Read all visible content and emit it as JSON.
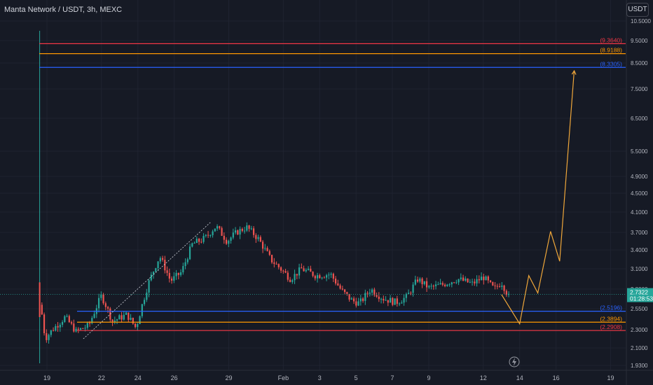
{
  "header": {
    "symbol_title": "Manta Network / USDT, 3h, MEXC",
    "currency": "USDT"
  },
  "colors": {
    "background": "#161a25",
    "up": "#26a69a",
    "down": "#ef5350",
    "red_line": "#f23645",
    "orange_line": "#ff9800",
    "blue_line": "#2962ff",
    "projection": "#f0a73a",
    "axis_text": "#b2b5be",
    "grid": "#1f2330"
  },
  "chart_data": {
    "type": "candlestick",
    "price_axis_ticks": [
      "10.5000",
      "9.5000",
      "8.5000",
      "7.5000",
      "6.5000",
      "5.5000",
      "4.9000",
      "4.5000",
      "4.1000",
      "3.7000",
      "3.4000",
      "3.1000",
      "2.8000",
      "2.5500",
      "2.3000",
      "2.1000",
      "1.9300"
    ],
    "time_axis_ticks": [
      "19",
      "22",
      "24",
      "26",
      "29",
      "Feb",
      "3",
      "5",
      "7",
      "9",
      "12",
      "14",
      "16",
      "19"
    ],
    "horizontal_levels": [
      {
        "value": 9.364,
        "label": "(9.3640)",
        "color": "#f23645"
      },
      {
        "value": 8.9188,
        "label": "(8.9188)",
        "color": "#ff9800"
      },
      {
        "value": 8.3305,
        "label": "(8.3305)",
        "color": "#2962ff"
      },
      {
        "value": 2.5196,
        "label": "(2.5196)",
        "color": "#2962ff"
      },
      {
        "value": 2.3894,
        "label": "(2.3894)",
        "color": "#ff9800"
      },
      {
        "value": 2.2908,
        "label": "(2.2908)",
        "color": "#f23645"
      }
    ],
    "current_price": {
      "value": "2.7322",
      "countdown": "01:28:53"
    },
    "projection_path": [
      {
        "x": "Feb 13",
        "y": 2.73
      },
      {
        "x": "Feb 14",
        "y": 2.37
      },
      {
        "x": "Feb 14.5",
        "y": 3.0
      },
      {
        "x": "Feb 15",
        "y": 2.75
      },
      {
        "x": "Feb 15.7",
        "y": 3.72
      },
      {
        "x": "Feb 16.2",
        "y": 3.22
      },
      {
        "x": "Feb 17",
        "y": 8.2
      }
    ],
    "trend_segment": [
      {
        "x": "Jan 21",
        "y": 2.2
      },
      {
        "x": "Jan 28",
        "y": 3.9
      }
    ],
    "price_path": [
      [
        "Jan 18.6",
        10.0
      ],
      [
        "Jan 18.65",
        2.6
      ],
      [
        "Jan 18.9",
        2.2
      ],
      [
        "Jan 19.3",
        2.3
      ],
      [
        "Jan 20",
        2.45
      ],
      [
        "Jan 20.6",
        2.28
      ],
      [
        "Jan 21.3",
        2.35
      ],
      [
        "Jan 22",
        2.72
      ],
      [
        "Jan 22.6",
        2.4
      ],
      [
        "Jan 23.4",
        2.48
      ],
      [
        "Jan 23.9",
        2.32
      ],
      [
        "Jan 24.6",
        2.9
      ],
      [
        "Jan 25.2",
        3.3
      ],
      [
        "Jan 25.8",
        2.92
      ],
      [
        "Jan 26.4",
        3.05
      ],
      [
        "Jan 27.0",
        3.5
      ],
      [
        "Jan 27.7",
        3.6
      ],
      [
        "Jan 28.3",
        3.82
      ],
      [
        "Jan 28.9",
        3.55
      ],
      [
        "Jan 29.5",
        3.72
      ],
      [
        "Jan 30.0",
        3.8
      ],
      [
        "Jan 30.6",
        3.6
      ],
      [
        "Jan 31.3",
        3.25
      ],
      [
        "Feb 1.4",
        2.95
      ],
      [
        "Feb 2.0",
        3.1
      ],
      [
        "Feb 2.8",
        3.0
      ],
      [
        "Feb 3.6",
        3.02
      ],
      [
        "Feb 4.2",
        2.78
      ],
      [
        "Feb 4.8",
        2.65
      ],
      [
        "Feb 5.2",
        2.62
      ],
      [
        "Feb 5.8",
        2.8
      ],
      [
        "Feb 6.5",
        2.68
      ],
      [
        "Feb 7.2",
        2.63
      ],
      [
        "Feb 7.8",
        2.7
      ],
      [
        "Feb 8.4",
        2.95
      ],
      [
        "Feb 9.0",
        2.82
      ],
      [
        "Feb 9.8",
        2.87
      ],
      [
        "Feb 10.6",
        2.95
      ],
      [
        "Feb 11.4",
        2.88
      ],
      [
        "Feb 12.0",
        2.98
      ],
      [
        "Feb 12.6",
        2.8
      ],
      [
        "Feb 13.0",
        2.9
      ],
      [
        "Feb 13.4",
        2.7
      ]
    ]
  }
}
